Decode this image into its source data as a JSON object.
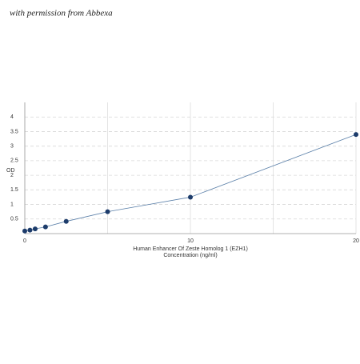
{
  "watermark": "with permission from Abbexa",
  "chart_data": {
    "type": "line",
    "ylabel": "OD",
    "xlabel": [
      "Human Enhancer Of Zeste Homolog 1 (EZH1)",
      "Concentration (ng/ml)"
    ],
    "x": [
      0,
      0.3125,
      0.625,
      1.25,
      2.5,
      5,
      10,
      20
    ],
    "series": [
      {
        "color": "#5a7fa8",
        "marker_color": "#1d3c6b",
        "values": [
          0.09,
          0.12,
          0.16,
          0.23,
          0.42,
          0.75,
          1.25,
          3.4
        ]
      }
    ],
    "xlim": [
      0,
      20
    ],
    "xticks": [
      0,
      10,
      20
    ],
    "x_minor_grid": [
      5,
      15
    ],
    "ylim": [
      0,
      4.5
    ],
    "yticks": [
      0.5,
      1,
      1.5,
      2,
      2.5,
      3,
      3.5,
      4
    ],
    "grid": true
  }
}
